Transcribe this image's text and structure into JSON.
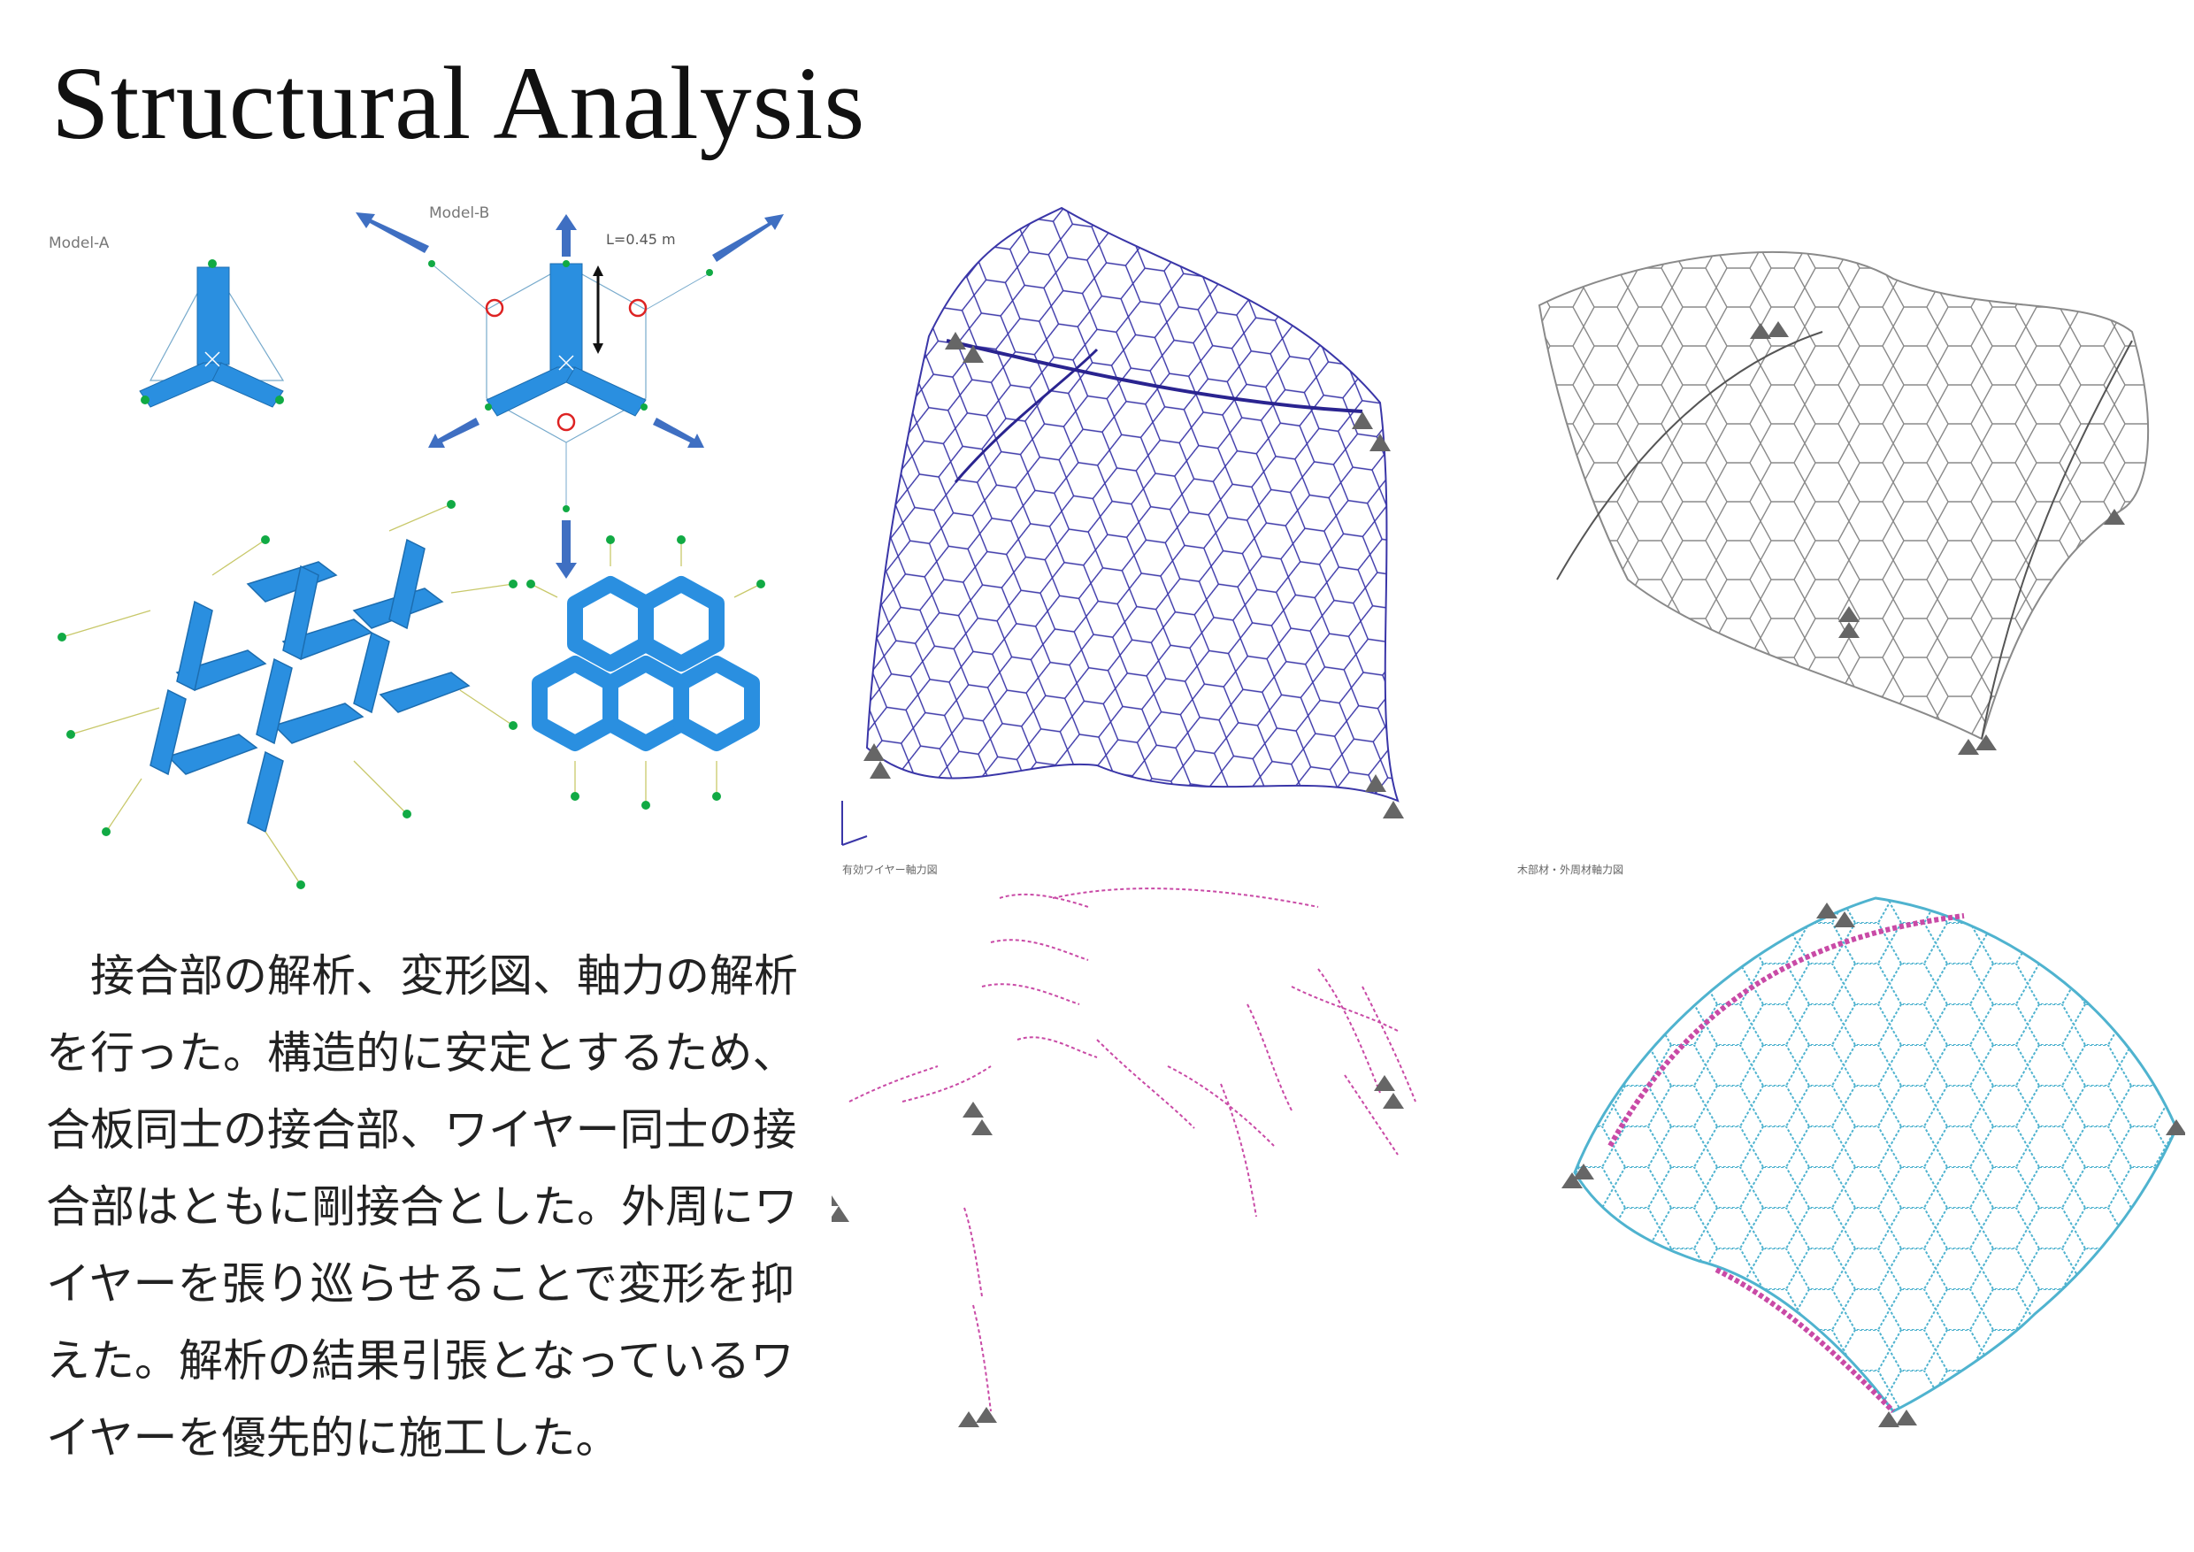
{
  "title": "Structural Analysis",
  "joint_models": {
    "model_a_label": "Model-A",
    "model_b_label": "Model-B",
    "length_label": "L=0.45 m"
  },
  "analysis_figures": {
    "bottom_left_caption": "有効ワイヤー軸力図",
    "bottom_right_caption": "木部材・外周材軸力図"
  },
  "description": "接合部の解析、変形図、軸力の解析を行った。構造的に安定とするため、合板同士の接合部、ワイヤー同士の接合部はともに剛接合とした。外周にワイヤーを張り巡らせることで変形を抑えた。解析の結果引張となっているワイヤーを優先的に施工した。",
  "colors": {
    "plywood": "#2a8fe0",
    "arrow": "#3f6fc2",
    "deformed_mesh": "#3a36a8",
    "original_mesh": "#8a8a8a",
    "tension": "#c94aa6",
    "compression": "#4fb3cf",
    "support": "#555555"
  }
}
